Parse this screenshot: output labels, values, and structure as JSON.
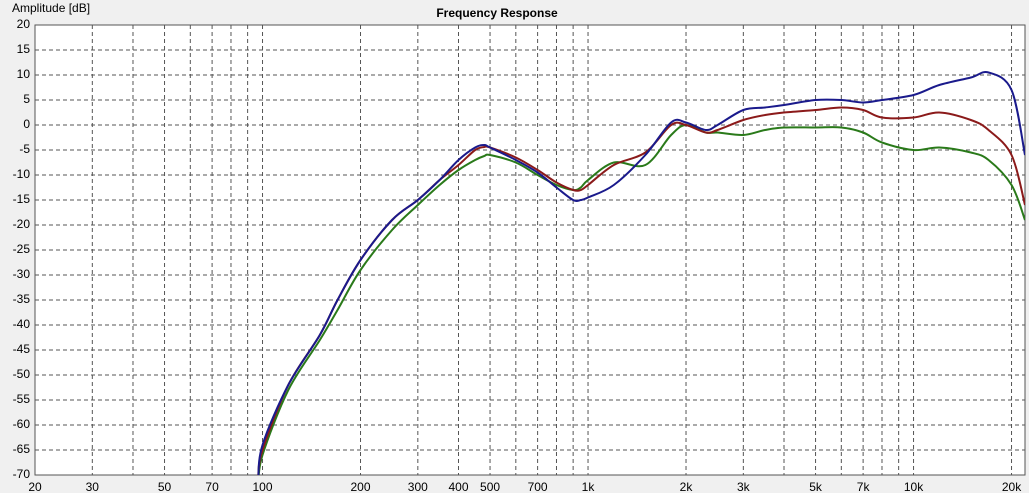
{
  "chart_data": {
    "type": "line",
    "title": "Frequency Response",
    "y_label": "Amplitude [dB]",
    "log_x": true,
    "grid": true,
    "xlim": [
      20,
      22000
    ],
    "ylim": [
      -70,
      20
    ],
    "xticks": [
      20,
      30,
      50,
      70,
      100,
      200,
      300,
      400,
      500,
      700,
      {
        "value": 1000,
        "label": "1k"
      },
      {
        "value": 2000,
        "label": "2k"
      },
      {
        "value": 3000,
        "label": "3k"
      },
      {
        "value": 5000,
        "label": "5k"
      },
      {
        "value": 7000,
        "label": "7k"
      },
      {
        "value": 10000,
        "label": "10k"
      },
      {
        "value": 20000,
        "label": "20k"
      }
    ],
    "x_minor_grid": [
      40,
      60,
      80,
      90,
      600,
      800,
      900,
      4000,
      6000,
      8000,
      9000
    ],
    "yticks": [
      20,
      15,
      10,
      5,
      0,
      -5,
      -10,
      -15,
      -20,
      -25,
      -30,
      -35,
      -40,
      -45,
      -50,
      -55,
      -60,
      -65,
      -70
    ],
    "x": [
      97,
      100,
      120,
      150,
      170,
      200,
      250,
      300,
      350,
      400,
      450,
      480,
      500,
      600,
      700,
      800,
      900,
      950,
      1000,
      1200,
      1500,
      1800,
      2000,
      2300,
      2500,
      3000,
      3500,
      4000,
      5000,
      6000,
      7000,
      8000,
      10000,
      12000,
      15000,
      17000,
      20000,
      22000
    ],
    "series": [
      {
        "color": "#2a7a1a",
        "values": [
          -72,
          -66,
          -53,
          -43,
          -37,
          -29,
          -21,
          -16,
          -12,
          -9,
          -7,
          -6.2,
          -6,
          -7.5,
          -10,
          -12,
          -13,
          -12.5,
          -11,
          -7.5,
          -8,
          -2,
          0,
          -1.5,
          -1.5,
          -2,
          -1,
          -0.5,
          -0.5,
          -0.5,
          -1.5,
          -3.5,
          -5,
          -4.5,
          -5.5,
          -7,
          -12,
          -19
        ]
      },
      {
        "color": "#8b1a1a",
        "values": [
          -70,
          -65,
          -52,
          -42,
          -35,
          -27,
          -19,
          -15,
          -11,
          -8,
          -5,
          -4.4,
          -4.5,
          -6.5,
          -9,
          -11.5,
          -13,
          -13,
          -12,
          -8,
          -5.5,
          0,
          0,
          -1.5,
          -1,
          1,
          2,
          2.5,
          3,
          3.5,
          3,
          1.5,
          1.5,
          2.5,
          1,
          -1,
          -6,
          -16
        ]
      },
      {
        "color": "#1a1a8c",
        "values": [
          -71,
          -64,
          -52,
          -42,
          -35,
          -27,
          -19,
          -15,
          -11,
          -7,
          -4.5,
          -4,
          -4.5,
          -7,
          -9.5,
          -12.5,
          -15,
          -15,
          -14.5,
          -12,
          -6,
          0.5,
          0.5,
          -1,
          0,
          3,
          3.5,
          4,
          5,
          5,
          4.5,
          5,
          6,
          8,
          9.5,
          10.5,
          7,
          -6
        ]
      }
    ]
  }
}
